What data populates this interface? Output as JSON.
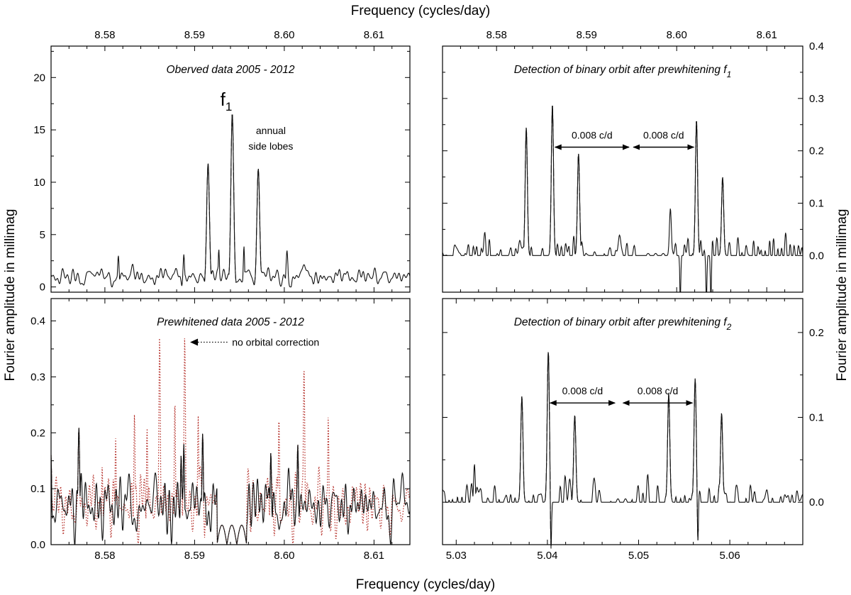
{
  "figure": {
    "top_xlabel": "Frequency (cycles/day)",
    "bottom_xlabel": "Frequency (cycles/day)",
    "left_ylabel": "Fourier amplitude in millimag",
    "right_ylabel": "Fourier amplitude in millimag"
  },
  "chart_data": [
    {
      "id": "tl",
      "type": "line",
      "title": "Oberved data 2005 - 2012",
      "xlim": [
        8.574,
        8.614
      ],
      "ylim": [
        -0.5,
        23
      ],
      "xticks": [
        8.58,
        8.59,
        8.6,
        8.61
      ],
      "xtick_labels": [
        "8.58",
        "8.59",
        "8.60",
        "8.61"
      ],
      "yticks": [
        0,
        5,
        10,
        15,
        20
      ],
      "ytick_labels": [
        "0",
        "5",
        "10",
        "15",
        "20"
      ],
      "baseline": 1.0,
      "noise_amp": 0.9,
      "seed": 11,
      "peaks": [
        {
          "x": 8.5915,
          "y": 11.8,
          "w": 0.00022
        },
        {
          "x": 8.5942,
          "y": 16.6,
          "w": 0.00022
        },
        {
          "x": 8.5971,
          "y": 11.3,
          "w": 0.00022
        },
        {
          "x": 8.5815,
          "y": 3.0,
          "w": 0.00012
        },
        {
          "x": 8.5888,
          "y": 3.1,
          "w": 0.00012
        },
        {
          "x": 8.6003,
          "y": 3.5,
          "w": 0.00014
        },
        {
          "x": 8.5955,
          "y": 3.9,
          "w": 0.0001
        },
        {
          "x": 8.5927,
          "y": 3.6,
          "w": 0.0001
        }
      ],
      "annotations": [
        {
          "text": "f",
          "sub": "1"
        },
        {
          "text": "annual"
        },
        {
          "text": "side lobes"
        }
      ]
    },
    {
      "id": "tr",
      "type": "line",
      "title": "Detection of binary orbit after prewhitening f",
      "title_sub": "1",
      "xlim": [
        8.574,
        8.614
      ],
      "ylim": [
        -0.07,
        0.4
      ],
      "xticks": [
        8.58,
        8.59,
        8.6,
        8.61
      ],
      "xtick_labels": [
        "8.58",
        "8.59",
        "8.60",
        "8.61"
      ],
      "yticks": [
        0.0,
        0.1,
        0.2,
        0.3,
        0.4
      ],
      "ytick_labels": [
        "0.0",
        "0.1",
        "0.2",
        "0.3",
        "0.4"
      ],
      "baseline": 0.0,
      "noise_amp": 0.035,
      "seed": 23,
      "peaks": [
        {
          "x": 8.5833,
          "y": 0.245,
          "w": 0.00017
        },
        {
          "x": 8.5862,
          "y": 0.29,
          "w": 0.00017
        },
        {
          "x": 8.5891,
          "y": 0.195,
          "w": 0.00017
        },
        {
          "x": 8.5993,
          "y": 0.09,
          "w": 0.00015
        },
        {
          "x": 8.6022,
          "y": 0.26,
          "w": 0.00017
        },
        {
          "x": 8.6051,
          "y": 0.15,
          "w": 0.00017
        }
      ],
      "dips": [
        {
          "x": 8.6004,
          "y": -0.09,
          "w": 8e-05
        },
        {
          "x": 8.6033,
          "y": -0.09,
          "w": 8e-05
        },
        {
          "x": 8.6038,
          "y": -0.09,
          "w": 8e-05
        }
      ],
      "flat": [
        8.5962,
        8.5987
      ],
      "arrows": [
        {
          "label": "0.008 c/d",
          "x1": 8.5865,
          "x2": 8.5947,
          "y": 0.207
        },
        {
          "label": "0.008 c/d",
          "x1": 8.5952,
          "x2": 8.6019,
          "y": 0.207
        }
      ]
    },
    {
      "id": "bl",
      "type": "line",
      "title": "Prewhitened data 2005 - 2012",
      "xlim": [
        8.574,
        8.614
      ],
      "ylim": [
        0,
        0.44
      ],
      "xticks": [
        8.58,
        8.59,
        8.6,
        8.61
      ],
      "xtick_labels": [
        "8.58",
        "8.59",
        "8.60",
        "8.61"
      ],
      "yticks": [
        0.0,
        0.1,
        0.2,
        0.3,
        0.4
      ],
      "ytick_labels": [
        "0.0",
        "0.1",
        "0.2",
        "0.3",
        "0.4"
      ],
      "baseline": 0.07,
      "noise_amp": 0.055,
      "seed": 37,
      "gap": [
        8.5925,
        8.5958
      ],
      "peaks": [
        {
          "x": 8.5771,
          "y": 0.21,
          "w": 0.00014
        },
        {
          "x": 8.5888,
          "y": 0.18,
          "w": 0.00012
        },
        {
          "x": 8.5909,
          "y": 0.2,
          "w": 0.00012
        },
        {
          "x": 8.5885,
          "y": 0.16,
          "w": 0.00012
        },
        {
          "x": 8.6015,
          "y": 0.18,
          "w": 0.00012
        },
        {
          "x": 8.5985,
          "y": 0.165,
          "w": 0.00012
        },
        {
          "x": 8.574,
          "y": 0.16,
          "w": 0.0001
        }
      ],
      "series": [
        {
          "name": "no orbital correction",
          "style": "dotted",
          "color": "#b5302a",
          "peaks": [
            {
              "x": 8.5861,
              "y": 0.372,
              "w": 0.00012
            },
            {
              "x": 8.5889,
              "y": 0.372,
              "w": 0.00012
            },
            {
              "x": 8.5833,
              "y": 0.235,
              "w": 0.0001
            },
            {
              "x": 8.5847,
              "y": 0.21,
              "w": 0.0001
            },
            {
              "x": 8.5878,
              "y": 0.26,
              "w": 0.0001
            },
            {
              "x": 8.5904,
              "y": 0.23,
              "w": 0.0001
            },
            {
              "x": 8.5994,
              "y": 0.23,
              "w": 0.0001
            },
            {
              "x": 8.6022,
              "y": 0.32,
              "w": 0.00012
            },
            {
              "x": 8.6049,
              "y": 0.23,
              "w": 0.0001
            },
            {
              "x": 8.5812,
              "y": 0.19,
              "w": 0.0001
            },
            {
              "x": 8.5797,
              "y": 0.14,
              "w": 0.0001
            }
          ]
        }
      ],
      "legend_arrow_text": "no orbital correction"
    },
    {
      "id": "br",
      "type": "line",
      "title": "Detection of binary orbit after prewhitening f",
      "title_sub": "2",
      "xlim": [
        5.0285,
        5.068
      ],
      "ylim": [
        -0.05,
        0.24
      ],
      "xticks": [
        5.03,
        5.04,
        5.05,
        5.06
      ],
      "xtick_labels": [
        "5.03",
        "5.04",
        "5.05",
        "5.06"
      ],
      "yticks": [
        0.0,
        0.1,
        0.2
      ],
      "ytick_labels": [
        "0.0",
        "0.1",
        "0.2"
      ],
      "baseline": 0.0,
      "noise_amp": 0.025,
      "seed": 53,
      "peaks": [
        {
          "x": 5.0372,
          "y": 0.125,
          "w": 0.00017
        },
        {
          "x": 5.0401,
          "y": 0.178,
          "w": 0.00017
        },
        {
          "x": 5.043,
          "y": 0.103,
          "w": 0.00017
        },
        {
          "x": 5.0533,
          "y": 0.128,
          "w": 0.00017
        },
        {
          "x": 5.0562,
          "y": 0.146,
          "w": 0.00017
        },
        {
          "x": 5.0591,
          "y": 0.105,
          "w": 0.00017
        },
        {
          "x": 5.032,
          "y": 0.045,
          "w": 0.00012
        }
      ],
      "dips": [
        {
          "x": 5.0404,
          "y": -0.055,
          "w": 8e-05
        },
        {
          "x": 5.0565,
          "y": -0.045,
          "w": 8e-05
        }
      ],
      "flat": [
        5.0474,
        5.0493
      ],
      "arrows": [
        {
          "label": "0.008 c/d",
          "x1": 5.0403,
          "x2": 5.0474,
          "y": 0.117
        },
        {
          "label": "0.008 c/d",
          "x1": 5.0483,
          "x2": 5.0559,
          "y": 0.117
        }
      ]
    }
  ]
}
